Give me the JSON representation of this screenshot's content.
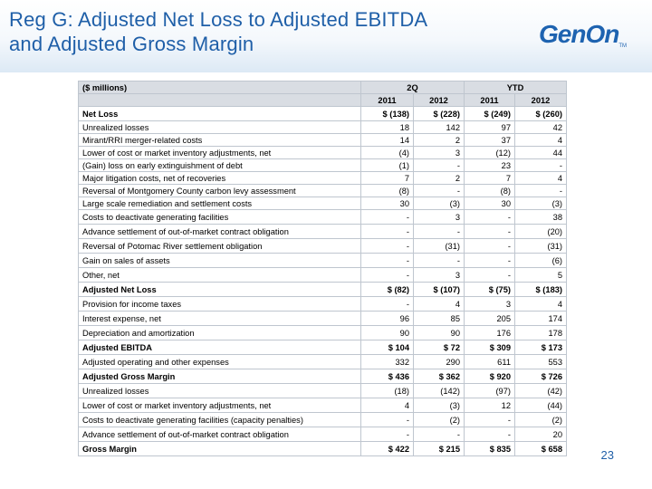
{
  "title": {
    "line1": "Reg G: Adjusted Net Loss to Adjusted EBITDA",
    "line2": "and Adjusted Gross Margin"
  },
  "logo": {
    "text": "GenOn",
    "mark": "TM"
  },
  "table": {
    "unit_label": "($ millions)",
    "group_2q": "2Q",
    "group_ytd": "YTD",
    "years": [
      "2011",
      "2012",
      "2011",
      "2012"
    ],
    "rows": [
      {
        "label": "Net Loss",
        "v": [
          "$ (138)",
          "$ (228)",
          "$ (249)",
          "$  (260)"
        ]
      },
      {
        "label": "Unrealized losses",
        "v": [
          "18",
          "142",
          "97",
          "42"
        ]
      },
      {
        "label": "Mirant/RRI merger-related costs",
        "v": [
          "14",
          "2",
          "37",
          "4"
        ]
      },
      {
        "label": "Lower of cost or market inventory adjustments, net",
        "v": [
          "(4)",
          "3",
          "(12)",
          "44"
        ]
      },
      {
        "label": "(Gain) loss on early extinguishment of debt",
        "v": [
          "(1)",
          "-",
          "23",
          "-"
        ]
      },
      {
        "label": "Major litigation costs, net of recoveries",
        "v": [
          "7",
          "2",
          "7",
          "4"
        ]
      },
      {
        "label": "Reversal of Montgomery County carbon levy assessment",
        "v": [
          "(8)",
          "-",
          "(8)",
          "-"
        ]
      },
      {
        "label": "Large scale remediation and settlement costs",
        "v": [
          "30",
          "(3)",
          "30",
          "(3)"
        ]
      },
      {
        "label": "Costs to deactivate generating facilities",
        "v": [
          "-",
          "3",
          "-",
          "38"
        ]
      },
      {
        "label": "Advance settlement of out-of-market contract obligation",
        "v": [
          "-",
          "-",
          "-",
          "(20)"
        ]
      },
      {
        "label": "Reversal of Potomac River settlement obligation",
        "v": [
          "-",
          "(31)",
          "-",
          "(31)"
        ]
      },
      {
        "label": "Gain on sales of assets",
        "v": [
          "-",
          "-",
          "-",
          "(6)"
        ]
      },
      {
        "label": "Other, net",
        "v": [
          "-",
          "3",
          "-",
          "5"
        ]
      },
      {
        "label": "Adjusted Net Loss",
        "v": [
          "$ (82)",
          "$ (107)",
          "$  (75)",
          "$ (183)"
        ]
      },
      {
        "label": "Provision for income taxes",
        "v": [
          "-",
          "4",
          "3",
          "4"
        ]
      },
      {
        "label": "Interest expense, net",
        "v": [
          "96",
          "85",
          "205",
          "174"
        ]
      },
      {
        "label": "Depreciation and amortization",
        "v": [
          "90",
          "90",
          "176",
          "178"
        ]
      },
      {
        "label": "Adjusted EBITDA",
        "v": [
          "$ 104",
          "$ 72",
          "$ 309",
          "$ 173"
        ]
      },
      {
        "label": "Adjusted operating and other expenses",
        "v": [
          "332",
          "290",
          "611",
          "553"
        ]
      },
      {
        "label": "Adjusted Gross Margin",
        "v": [
          "$ 436",
          "$ 362",
          "$ 920",
          "$ 726"
        ]
      },
      {
        "label": "Unrealized losses",
        "v": [
          "(18)",
          "(142)",
          "(97)",
          "(42)"
        ]
      },
      {
        "label": "Lower of cost or market inventory adjustments, net",
        "v": [
          "4",
          "(3)",
          "12",
          "(44)"
        ]
      },
      {
        "label": "Costs to deactivate generating facilities (capacity penalties)",
        "v": [
          "-",
          "(2)",
          "-",
          "(2)"
        ]
      },
      {
        "label": "Advance settlement of out-of-market contract obligation",
        "v": [
          "-",
          "-",
          "-",
          "20"
        ]
      },
      {
        "label": "Gross Margin",
        "v": [
          "$ 422",
          "$ 215",
          "$ 835",
          "$ 658"
        ]
      }
    ]
  },
  "page_number": "23",
  "colors": {
    "title": "#1f5fa8",
    "logo": "#1e63b0",
    "header_fill": "#d9dde3",
    "grid": "#bfc6cf"
  }
}
